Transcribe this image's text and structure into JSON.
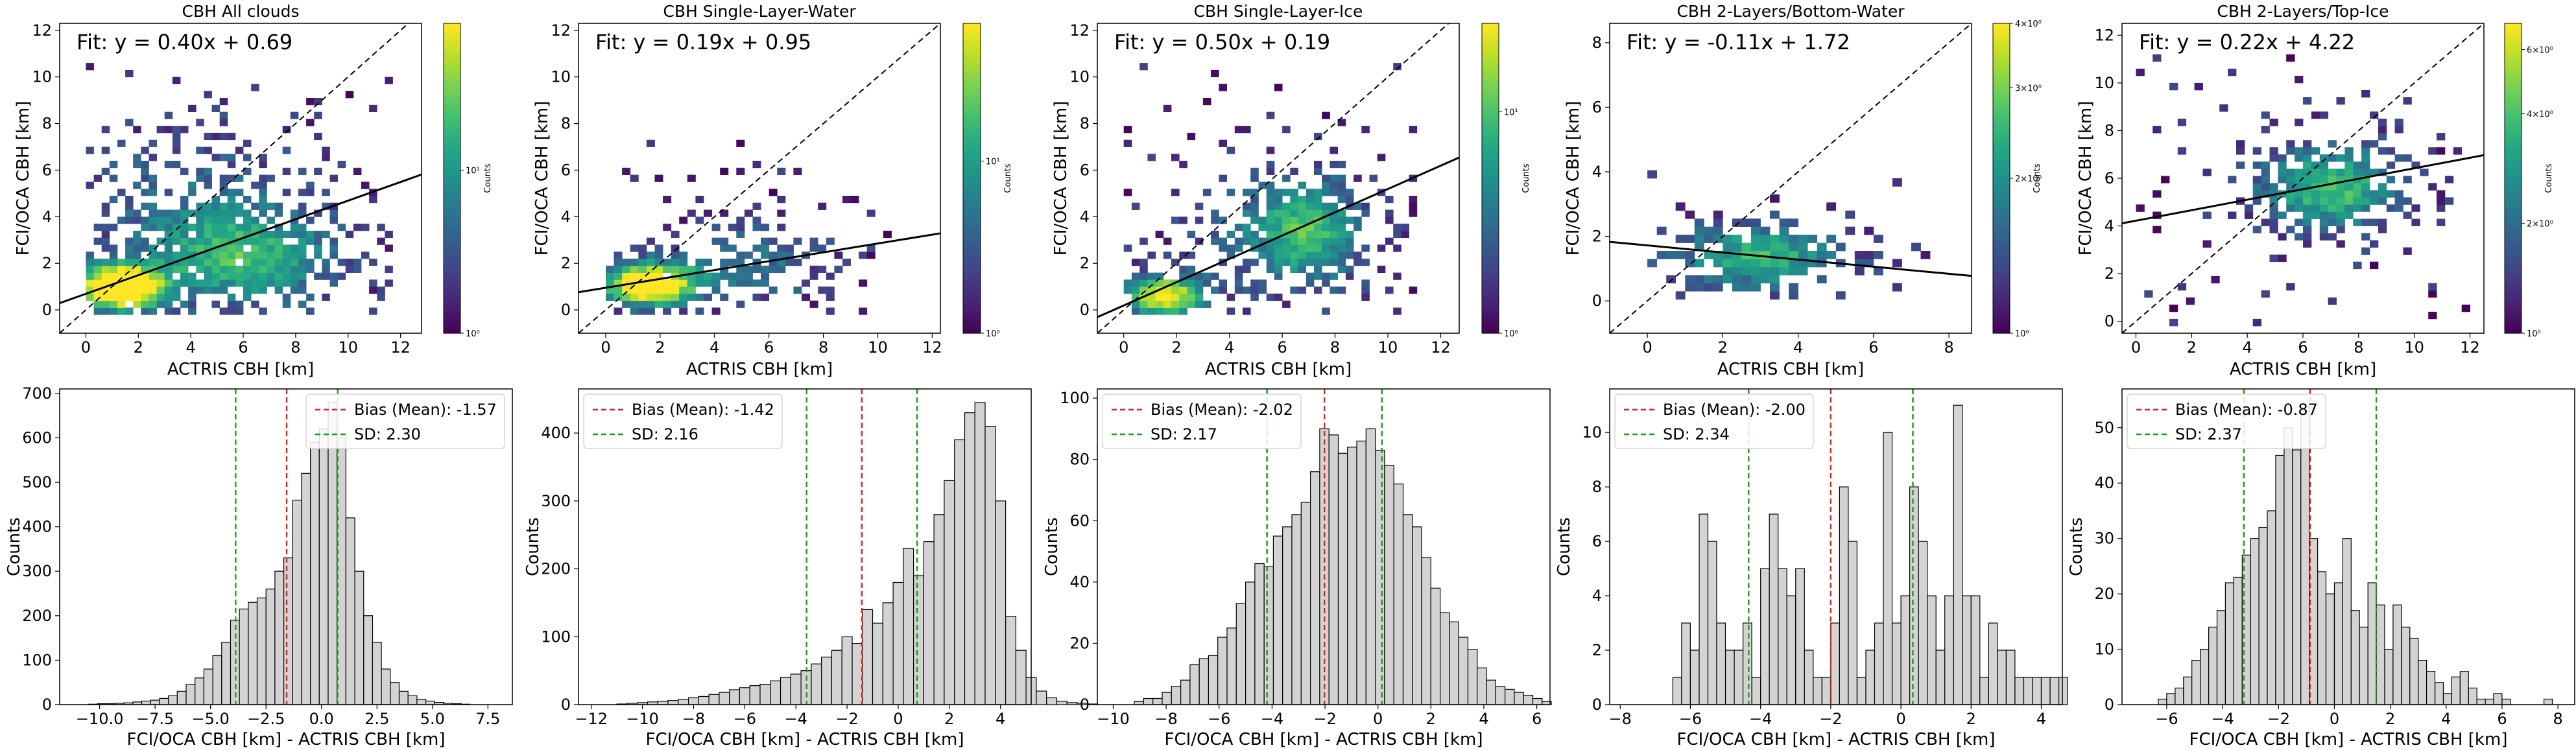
{
  "figure": {
    "title": ""
  },
  "chart_data": [
    {
      "type": "heatmap",
      "title": "CBH All clouds",
      "xlabel": "ACTRIS CBH [km]",
      "ylabel": "FCI/OCA CBH [km]",
      "xlim": [
        -1,
        12.8
      ],
      "ylim": [
        -1,
        12.3
      ],
      "xticks": [
        0,
        2,
        4,
        6,
        8,
        10,
        12
      ],
      "yticks": [
        0,
        2,
        4,
        6,
        8,
        10,
        12
      ],
      "fit": {
        "slope": 0.4,
        "intercept": 0.69
      },
      "fit_label": "Fit: y = 0.40x + 0.69",
      "colorbar": {
        "label": "Counts",
        "tick_labels": [
          "10⁰",
          "10¹"
        ],
        "log_positions": [
          0,
          1
        ],
        "log_range": [
          0,
          1.9
        ]
      }
    },
    {
      "type": "heatmap",
      "title": "CBH Single-Layer-Water",
      "xlabel": "ACTRIS CBH [km]",
      "ylabel": "FCI/OCA CBH [km]",
      "xlim": [
        -1,
        12.3
      ],
      "ylim": [
        -1,
        12.3
      ],
      "xticks": [
        0,
        2,
        4,
        6,
        8,
        10,
        12
      ],
      "yticks": [
        0,
        2,
        4,
        6,
        8,
        10,
        12
      ],
      "fit": {
        "slope": 0.19,
        "intercept": 0.95
      },
      "fit_label": "Fit: y = 0.19x + 0.95",
      "colorbar": {
        "label": "Counts",
        "tick_labels": [
          "10⁰",
          "10¹"
        ],
        "log_positions": [
          0,
          1
        ],
        "log_range": [
          0,
          1.8
        ]
      }
    },
    {
      "type": "heatmap",
      "title": "CBH Single-Layer-Ice",
      "xlabel": "ACTRIS CBH [km]",
      "ylabel": "FCI/OCA CBH [km]",
      "xlim": [
        -1,
        12.7
      ],
      "ylim": [
        -1,
        12.3
      ],
      "xticks": [
        0,
        2,
        4,
        6,
        8,
        10,
        12
      ],
      "yticks": [
        0,
        2,
        4,
        6,
        8,
        10,
        12
      ],
      "fit": {
        "slope": 0.5,
        "intercept": 0.19
      },
      "fit_label": "Fit: y = 0.50x + 0.19",
      "colorbar": {
        "label": "Counts",
        "tick_labels": [
          "10⁰",
          "10¹"
        ],
        "log_positions": [
          0,
          1
        ],
        "log_range": [
          0,
          1.4
        ]
      }
    },
    {
      "type": "heatmap",
      "title": "CBH 2-Layers/Bottom-Water",
      "xlabel": "ACTRIS CBH [km]",
      "ylabel": "FCI/OCA CBH [km]",
      "xlim": [
        -1,
        8.6
      ],
      "ylim": [
        -1,
        8.6
      ],
      "xticks": [
        0,
        2,
        4,
        6,
        8
      ],
      "yticks": [
        0,
        2,
        4,
        6,
        8
      ],
      "fit": {
        "slope": -0.11,
        "intercept": 1.72
      },
      "fit_label": "Fit: y = -0.11x + 1.72",
      "colorbar": {
        "label": "Counts",
        "tick_labels": [
          "10⁰",
          "2×10⁰",
          "3×10⁰",
          "4×10⁰"
        ],
        "log_positions": [
          0,
          0.301,
          0.477,
          0.602
        ],
        "log_range": [
          0,
          0.602
        ]
      }
    },
    {
      "type": "heatmap",
      "title": "CBH 2-Layers/Top-Ice",
      "xlabel": "ACTRIS CBH [km]",
      "ylabel": "FCI/OCA CBH [km]",
      "xlim": [
        -0.5,
        12.5
      ],
      "ylim": [
        -0.5,
        12.5
      ],
      "xticks": [
        0,
        2,
        4,
        6,
        8,
        10,
        12
      ],
      "yticks": [
        0,
        2,
        4,
        6,
        8,
        10,
        12
      ],
      "fit": {
        "slope": 0.22,
        "intercept": 4.22
      },
      "fit_label": "Fit: y = 0.22x + 4.22",
      "colorbar": {
        "label": "Counts",
        "tick_labels": [
          "10⁰",
          "2×10⁰",
          "4×10⁰",
          "6×10⁰"
        ],
        "log_positions": [
          0,
          0.301,
          0.602,
          0.778
        ],
        "log_range": [
          0,
          0.85
        ]
      }
    },
    {
      "type": "bar",
      "title": "",
      "xlabel": "FCI/OCA CBH [km] - ACTRIS CBH [km]",
      "ylabel": "Counts",
      "xlim": [
        -11.8,
        8.6
      ],
      "ylim": [
        0,
        710
      ],
      "xticks": [
        -10,
        -7.5,
        -5,
        -2.5,
        0,
        2.5,
        5,
        7.5
      ],
      "xtick_labels": [
        "−10.0",
        "−7.5",
        "−5.0",
        "−2.5",
        "0.0",
        "2.5",
        "5.0",
        "7.5"
      ],
      "yticks": [
        0,
        100,
        200,
        300,
        400,
        500,
        600,
        700
      ],
      "bin_start": -10.5,
      "bin_width": 0.4,
      "values": [
        1,
        2,
        2,
        3,
        4,
        6,
        8,
        10,
        14,
        20,
        30,
        45,
        60,
        80,
        110,
        140,
        190,
        215,
        230,
        240,
        260,
        300,
        330,
        460,
        520,
        590,
        620,
        680,
        600,
        420,
        300,
        200,
        140,
        80,
        50,
        30,
        20,
        12,
        8,
        5,
        3,
        2,
        1
      ],
      "legend": {
        "bias_label": "Bias (Mean): -1.57",
        "sd_label": "SD: 2.30"
      },
      "bias": -1.57,
      "sd": 2.3
    },
    {
      "type": "bar",
      "title": "",
      "xlabel": "FCI/OCA CBH [km] - ACTRIS CBH [km]",
      "ylabel": "Counts",
      "xlim": [
        -12.5,
        5.2
      ],
      "ylim": [
        0,
        465
      ],
      "xticks": [
        -12,
        -10,
        -8,
        -6,
        -4,
        -2,
        0,
        2,
        4
      ],
      "xtick_labels": [
        "−12",
        "−10",
        "−8",
        "−6",
        "−4",
        "−2",
        "0",
        "2",
        "4"
      ],
      "yticks": [
        0,
        100,
        200,
        300,
        400
      ],
      "bin_start": -11,
      "bin_width": 0.4,
      "values": [
        1,
        2,
        3,
        4,
        5,
        6,
        8,
        10,
        12,
        15,
        18,
        22,
        25,
        28,
        30,
        35,
        40,
        45,
        50,
        60,
        70,
        80,
        100,
        90,
        140,
        120,
        150,
        180,
        230,
        190,
        240,
        280,
        330,
        390,
        430,
        445,
        410,
        300,
        130,
        80,
        40,
        20,
        10,
        5,
        3,
        2,
        1
      ],
      "legend": {
        "bias_label": "Bias (Mean): -1.42",
        "sd_label": "SD: 2.16"
      },
      "bias": -1.42,
      "sd": 2.16
    },
    {
      "type": "bar",
      "title": "",
      "xlabel": "FCI/OCA CBH [km] - ACTRIS CBH [km]",
      "ylabel": "Counts",
      "xlim": [
        -10.6,
        6.5
      ],
      "ylim": [
        0,
        103
      ],
      "xticks": [
        -10,
        -8,
        -6,
        -4,
        -2,
        0,
        2,
        4,
        6
      ],
      "xtick_labels": [
        "−10",
        "−8",
        "−6",
        "−4",
        "−2",
        "0",
        "2",
        "4",
        "6"
      ],
      "yticks": [
        0,
        20,
        40,
        60,
        80,
        100
      ],
      "bin_start": -9.2,
      "bin_width": 0.35,
      "values": [
        1,
        2,
        2,
        4,
        6,
        8,
        13,
        15,
        16,
        22,
        25,
        33,
        40,
        46,
        45,
        55,
        58,
        62,
        66,
        76,
        90,
        88,
        82,
        84,
        86,
        90,
        83,
        78,
        72,
        62,
        58,
        48,
        38,
        30,
        27,
        22,
        18,
        12,
        8,
        6,
        5,
        4,
        3,
        2,
        1
      ],
      "legend": {
        "bias_label": "Bias (Mean): -2.02",
        "sd_label": "SD: 2.17"
      },
      "bias": -2.02,
      "sd": 2.17
    },
    {
      "type": "bar",
      "title": "",
      "xlabel": "FCI/OCA CBH [km] - ACTRIS CBH [km]",
      "ylabel": "Counts",
      "xlim": [
        -8.3,
        4.6
      ],
      "ylim": [
        0,
        11.6
      ],
      "xticks": [
        -8,
        -6,
        -4,
        -2,
        0,
        2,
        4
      ],
      "xtick_labels": [
        "−8",
        "−6",
        "−4",
        "−2",
        "0",
        "2",
        "4"
      ],
      "yticks": [
        0,
        2,
        4,
        6,
        8,
        10
      ],
      "bin_start": -6.5,
      "bin_width": 0.25,
      "values": [
        1,
        3,
        2,
        7,
        6,
        3,
        2,
        2,
        3,
        1,
        5,
        7,
        5,
        4,
        5,
        2,
        1,
        1,
        3,
        8,
        6,
        1,
        2,
        3,
        10,
        3,
        4,
        8,
        6,
        4,
        2,
        4,
        11,
        4,
        4,
        1,
        3,
        2,
        2,
        1,
        1,
        1,
        1,
        1,
        1
      ],
      "legend": {
        "bias_label": "Bias (Mean): -2.00",
        "sd_label": "SD: 2.34"
      },
      "bias": -2.0,
      "sd": 2.34
    },
    {
      "type": "bar",
      "title": "",
      "xlabel": "FCI/OCA CBH [km] - ACTRIS CBH [km]",
      "ylabel": "Counts",
      "xlim": [
        -7.6,
        8.6
      ],
      "ylim": [
        0,
        57
      ],
      "xticks": [
        -6,
        -4,
        -2,
        0,
        2,
        4,
        6,
        8
      ],
      "xtick_labels": [
        "−6",
        "−4",
        "−2",
        "0",
        "2",
        "4",
        "6",
        "8"
      ],
      "yticks": [
        0,
        10,
        20,
        30,
        40,
        50
      ],
      "bin_start": -6.3,
      "bin_width": 0.3,
      "values": [
        1,
        2,
        3,
        5,
        8,
        10,
        14,
        17,
        22,
        23,
        27,
        30,
        32,
        35,
        45,
        50,
        46,
        53,
        30,
        24,
        20,
        22,
        30,
        17,
        14,
        22,
        18,
        10,
        18,
        14,
        12,
        8,
        6,
        4,
        2,
        5,
        6,
        3,
        1,
        1,
        2,
        1,
        0,
        0,
        0,
        0,
        1
      ],
      "legend": {
        "bias_label": "Bias (Mean): -0.87",
        "sd_label": "SD: 2.37"
      },
      "bias": -0.87,
      "sd": 2.37
    }
  ]
}
